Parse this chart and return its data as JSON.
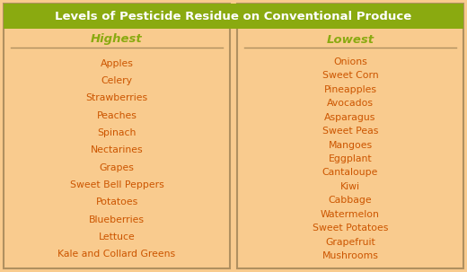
{
  "title": "Levels of Pesticide Residue on Conventional Produce",
  "title_bg_color": "#8aaa10",
  "title_text_color": "#ffffff",
  "body_bg_color": "#f9cb8e",
  "outer_border_color": "#b09060",
  "header_left": "Highest",
  "header_right": "Lowest",
  "header_color": "#8aaa10",
  "item_color": "#cc5500",
  "left_items": [
    "Apples",
    "Celery",
    "Strawberries",
    "Peaches",
    "Spinach",
    "Nectarines",
    "Grapes",
    "Sweet Bell Peppers",
    "Potatoes",
    "Blueberries",
    "Lettuce",
    "Kale and Collard Greens"
  ],
  "right_items": [
    "Onions",
    "Sweet Corn",
    "Pineapples",
    "Avocados",
    "Asparagus",
    "Sweet Peas",
    "Mangoes",
    "Eggplant",
    "Cantaloupe",
    "Kiwi",
    "Cabbage",
    "Watermelon",
    "Sweet Potatoes",
    "Grapefruit",
    "Mushrooms"
  ],
  "title_fontsize": 9.5,
  "header_fontsize": 9.5,
  "item_fontsize": 7.8
}
